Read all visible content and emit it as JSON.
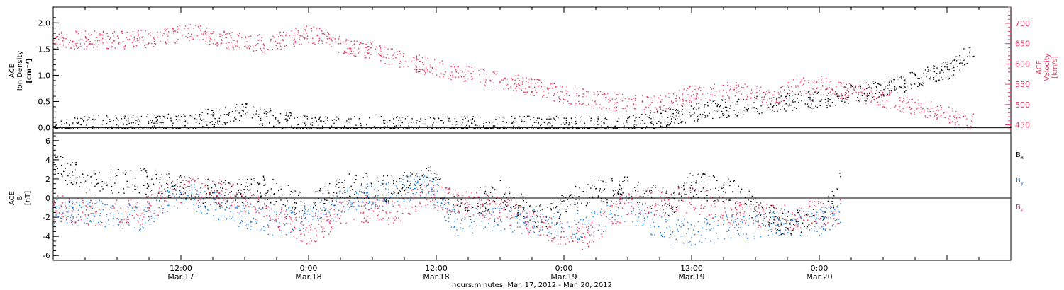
{
  "figure": {
    "xaxis_title": "hours:minutes, Mar. 17, 2012 - Mar. 20, 2012",
    "colors": {
      "black": "#000000",
      "pink": "#e8365d",
      "blue": "#1a7fe0"
    }
  },
  "chart_data": [
    {
      "type": "scatter",
      "panel": "top",
      "left_ylabel": [
        "ACE",
        "Ion Density",
        "[cm⁻³]"
      ],
      "right_ylabel": [
        "ACE",
        "Velocity",
        "[km/s]"
      ],
      "left_ylim": [
        -0.1,
        2.3
      ],
      "left_yticks": [
        "0.0",
        "0.5",
        "1.0",
        "1.5",
        "2.0"
      ],
      "right_ylim": [
        430,
        740
      ],
      "right_yticks": [
        "450",
        "500",
        "550",
        "600",
        "650",
        "700"
      ],
      "xlim_hours": [
        0,
        90
      ],
      "series": [
        {
          "axis": "left",
          "color": "#000000",
          "x_hours": [
            0,
            6,
            12,
            18,
            24,
            30,
            36,
            42,
            48,
            54,
            60,
            66,
            72,
            78,
            84,
            86.5
          ],
          "y": [
            0.05,
            0.08,
            0.1,
            0.3,
            0.05,
            0.05,
            0.05,
            0.05,
            0.05,
            0.05,
            0.3,
            0.45,
            0.55,
            0.75,
            1.1,
            1.5
          ]
        },
        {
          "axis": "right",
          "color": "#e8365d",
          "x_hours": [
            0,
            6,
            10,
            13,
            16,
            20,
            24,
            27,
            30,
            33,
            36,
            40,
            44,
            48,
            52,
            56,
            60,
            64,
            68,
            70,
            72,
            75,
            78,
            82,
            86.5
          ],
          "y": [
            660,
            660,
            665,
            680,
            660,
            650,
            675,
            650,
            630,
            610,
            590,
            570,
            550,
            525,
            510,
            500,
            525,
            535,
            525,
            545,
            550,
            530,
            515,
            490,
            458
          ]
        }
      ]
    },
    {
      "type": "scatter",
      "panel": "bottom",
      "ylabel": [
        "ACE",
        "B",
        "[nT]"
      ],
      "ylim": [
        -6.5,
        6.8
      ],
      "yticks": [
        "-6",
        "-4",
        "-2",
        "0",
        "2",
        "4",
        "6"
      ],
      "xlim_hours": [
        0,
        90
      ],
      "xticks": [
        {
          "hour": 12,
          "label1": "12:00",
          "label2": "Mar.17"
        },
        {
          "hour": 24,
          "label1": "0:00",
          "label2": "Mar.18"
        },
        {
          "hour": 36,
          "label1": "12:00",
          "label2": "Mar.18"
        },
        {
          "hour": 48,
          "label1": "0:00",
          "label2": "Mar.19"
        },
        {
          "hour": 60,
          "label1": "12:00",
          "label2": "Mar.19"
        },
        {
          "hour": 72,
          "label1": "0:00",
          "label2": "Mar.20"
        }
      ],
      "legend": [
        {
          "base": "B",
          "sub": "x",
          "color": "#000000"
        },
        {
          "base": "B",
          "sub": "y",
          "color": "#1a7fe0"
        },
        {
          "base": "B",
          "sub": "z",
          "color": "#e8365d"
        }
      ],
      "series": [
        {
          "name": "Bx",
          "color": "#000000",
          "x_hours": [
            0,
            4,
            8,
            12,
            16,
            20,
            24,
            28,
            32,
            35,
            38,
            42,
            46,
            50,
            54,
            58,
            60,
            64,
            68,
            72,
            74
          ],
          "y": [
            3.5,
            1.5,
            2.0,
            1.0,
            0.5,
            1.0,
            -1.0,
            1.5,
            1.0,
            2.5,
            -1.0,
            0.5,
            -2.0,
            0.5,
            1.0,
            -0.5,
            1.5,
            0.5,
            -2.5,
            -2.0,
            1.5
          ]
        },
        {
          "name": "By",
          "color": "#1a7fe0",
          "x_hours": [
            0,
            4,
            8,
            12,
            16,
            20,
            24,
            28,
            32,
            35,
            38,
            42,
            46,
            50,
            54,
            58,
            60,
            64,
            68,
            72,
            74
          ],
          "y": [
            -1.5,
            -1.5,
            -2.0,
            0.5,
            -1.0,
            -2.5,
            -2.0,
            0.0,
            0.5,
            1.5,
            -2.5,
            -2.0,
            -2.5,
            -3.0,
            -1.0,
            -3.5,
            -3.5,
            -3.0,
            -2.5,
            -2.5,
            -1.5
          ]
        },
        {
          "name": "Bz",
          "color": "#e8365d",
          "x_hours": [
            0,
            4,
            8,
            12,
            16,
            20,
            24,
            28,
            32,
            35,
            38,
            42,
            46,
            50,
            54,
            58,
            60,
            64,
            68,
            72,
            74
          ],
          "y": [
            -1.0,
            -1.5,
            -1.5,
            1.0,
            0.5,
            -1.5,
            -3.5,
            -1.0,
            -1.5,
            0.5,
            -0.5,
            -1.0,
            -3.0,
            -4.0,
            -0.5,
            -0.5,
            0.0,
            -1.5,
            -2.0,
            -1.5,
            -1.5
          ]
        }
      ]
    }
  ]
}
